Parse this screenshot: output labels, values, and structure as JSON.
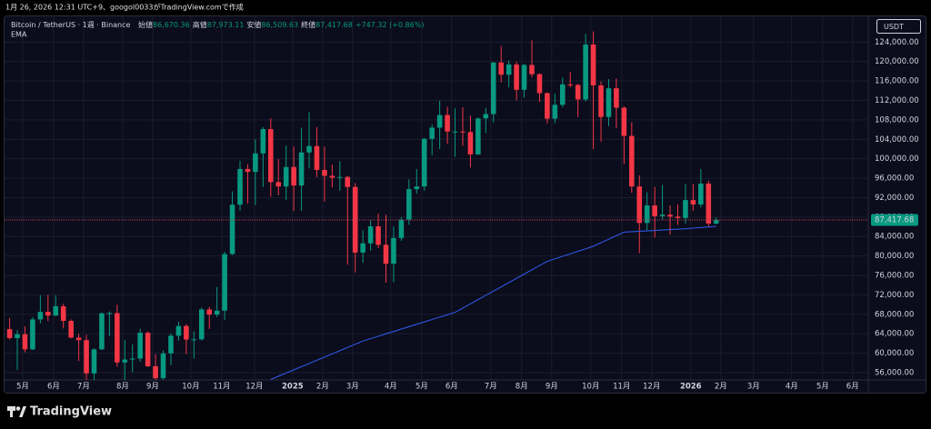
{
  "header": {
    "created": "1月 26, 2026 12:31 UTC+9、googol0033がTradingView.comで作成"
  },
  "chart_data": {
    "type": "candlestick",
    "symbol": "Bitcoin / TetherUS · 1週 · Binance",
    "legend": [
      {
        "label": "始値",
        "value": "86,670.36"
      },
      {
        "label": "高値",
        "value": "87,973.11"
      },
      {
        "label": "安値",
        "value": "86,509.63"
      },
      {
        "label": "終値",
        "value": "87,417.68"
      }
    ],
    "change": "+747.32 (+0.86%)",
    "currency": "USDT",
    "up_color": "#089981",
    "down_color": "#f23645",
    "ohlc": [
      [
        64940,
        67230,
        62800,
        63110
      ],
      [
        63110,
        64730,
        56550,
        63900
      ],
      [
        63900,
        65500,
        60190,
        60800
      ],
      [
        60800,
        67450,
        60630,
        66950
      ],
      [
        66950,
        71950,
        66100,
        68500
      ],
      [
        68500,
        71980,
        66600,
        67750
      ],
      [
        67750,
        71950,
        67600,
        69650
      ],
      [
        69650,
        70200,
        65100,
        66650
      ],
      [
        66650,
        66950,
        63050,
        63200
      ],
      [
        63200,
        64000,
        58400,
        62700
      ],
      [
        62700,
        63800,
        53500,
        55850
      ],
      [
        55850,
        61000,
        54300,
        60800
      ],
      [
        60800,
        68400,
        60600,
        68200
      ],
      [
        68200,
        68600,
        63500,
        68250
      ],
      [
        68250,
        70000,
        57200,
        58100
      ],
      [
        58100,
        62700,
        49000,
        58700
      ],
      [
        58700,
        61800,
        56100,
        58900
      ],
      [
        58900,
        65000,
        58200,
        64200
      ],
      [
        64200,
        64500,
        57200,
        57300
      ],
      [
        57300,
        59800,
        52550,
        54850
      ],
      [
        54850,
        60600,
        54550,
        59950
      ],
      [
        59950,
        64100,
        57500,
        63600
      ],
      [
        63600,
        66500,
        62600,
        65600
      ],
      [
        65600,
        66000,
        59800,
        62800
      ],
      [
        62800,
        64500,
        58900,
        62850
      ],
      [
        62850,
        69400,
        62600,
        69000
      ],
      [
        69000,
        69500,
        65000,
        67950
      ],
      [
        67950,
        73600,
        67450,
        68750
      ],
      [
        68750,
        80900,
        66800,
        80400
      ],
      [
        80400,
        93300,
        80200,
        90550
      ],
      [
        90550,
        99600,
        89300,
        97900
      ],
      [
        97900,
        98900,
        90800,
        97300
      ],
      [
        97300,
        104000,
        90500,
        101100
      ],
      [
        101100,
        106500,
        94200,
        106100
      ],
      [
        106100,
        108300,
        92200,
        95200
      ],
      [
        95200,
        99950,
        92500,
        94300
      ],
      [
        94300,
        102700,
        91500,
        98300
      ],
      [
        98300,
        102500,
        89250,
        94500
      ],
      [
        94500,
        106400,
        89300,
        101300
      ],
      [
        101300,
        109600,
        98000,
        102600
      ],
      [
        102600,
        106500,
        96200,
        97700
      ],
      [
        97700,
        102500,
        91200,
        96500
      ],
      [
        96500,
        98800,
        94100,
        96100
      ],
      [
        96100,
        99500,
        93400,
        96250
      ],
      [
        96250,
        96500,
        78200,
        94200
      ],
      [
        94200,
        95000,
        76600,
        80700
      ],
      [
        80700,
        85300,
        78600,
        82600
      ],
      [
        82600,
        87450,
        81150,
        86100
      ],
      [
        86100,
        88750,
        81600,
        82300
      ],
      [
        82300,
        88500,
        74500,
        78400
      ],
      [
        78400,
        86100,
        74600,
        83700
      ],
      [
        83700,
        88000,
        83100,
        87500
      ],
      [
        87500,
        95750,
        86400,
        93750
      ],
      [
        93750,
        97900,
        92800,
        94300
      ],
      [
        94300,
        104300,
        93400,
        104100
      ],
      [
        104100,
        107100,
        100700,
        106400
      ],
      [
        106400,
        111900,
        102000,
        109000
      ],
      [
        109000,
        110700,
        103100,
        105600
      ],
      [
        105600,
        110400,
        100400,
        105600
      ],
      [
        105600,
        110600,
        102700,
        105500
      ],
      [
        105500,
        108900,
        98200,
        100900
      ],
      [
        100900,
        108500,
        100800,
        108300
      ],
      [
        108300,
        110500,
        105300,
        109200
      ],
      [
        109200,
        119900,
        107500,
        119800
      ],
      [
        119800,
        123200,
        115700,
        117300
      ],
      [
        117300,
        120250,
        114700,
        119400
      ],
      [
        119400,
        120000,
        112000,
        114200
      ],
      [
        114200,
        119500,
        112600,
        119300
      ],
      [
        119300,
        124400,
        116800,
        117400
      ],
      [
        117400,
        117600,
        111700,
        113500
      ],
      [
        113500,
        113700,
        107300,
        108250
      ],
      [
        108250,
        113400,
        107300,
        111100
      ],
      [
        111100,
        116700,
        110600,
        115300
      ],
      [
        115300,
        117900,
        114700,
        115200
      ],
      [
        115200,
        115400,
        108600,
        112200
      ],
      [
        112200,
        125700,
        111800,
        123500
      ],
      [
        123500,
        126200,
        102000,
        115100
      ],
      [
        115100,
        115900,
        103500,
        108600
      ],
      [
        108600,
        116400,
        106700,
        114500
      ],
      [
        114500,
        116500,
        106300,
        110500
      ],
      [
        110500,
        110800,
        98900,
        104700
      ],
      [
        104700,
        107500,
        93000,
        94300
      ],
      [
        94300,
        96600,
        80600,
        86800
      ],
      [
        86800,
        93100,
        85300,
        90400
      ],
      [
        90400,
        94200,
        83800,
        88200
      ],
      [
        88200,
        94600,
        87500,
        88500
      ],
      [
        88500,
        90400,
        84400,
        88100
      ],
      [
        88100,
        90600,
        86400,
        87800
      ],
      [
        87800,
        94800,
        86600,
        91500
      ],
      [
        91500,
        94800,
        89300,
        90600
      ],
      [
        90600,
        97900,
        90000,
        94900
      ],
      [
        94900,
        95500,
        86000,
        86670.36
      ],
      [
        86670.36,
        87973.11,
        86509.63,
        87417.68
      ]
    ],
    "series": [
      {
        "name": "EMA",
        "color": "#2e55e0",
        "values": [
          null,
          null,
          null,
          null,
          null,
          null,
          null,
          null,
          null,
          null,
          null,
          null,
          null,
          null,
          null,
          null,
          null,
          null,
          null,
          null,
          null,
          null,
          null,
          null,
          null,
          null,
          null,
          null,
          null,
          null,
          null,
          null,
          null,
          null,
          54600,
          55260,
          55920,
          56570,
          57230,
          57890,
          58550,
          59200,
          59860,
          60520,
          61180,
          61840,
          62500,
          62990,
          63480,
          63980,
          64470,
          64960,
          65450,
          65940,
          66430,
          66930,
          67420,
          67910,
          68400,
          69280,
          70150,
          71030,
          71900,
          72780,
          73650,
          74530,
          75400,
          76280,
          77150,
          78030,
          78900,
          79420,
          79930,
          80450,
          80970,
          81480,
          82000,
          82730,
          83450,
          84180,
          84900,
          84990,
          85080,
          85160,
          85250,
          85340,
          85430,
          85510,
          85600,
          85730,
          85850,
          85980,
          86100
        ]
      }
    ],
    "last_price_label": "87,417.68",
    "xlim": [
      -0.66,
      111.8
    ],
    "xticks": [
      {
        "value": 1.7,
        "label": "5月"
      },
      {
        "value": 5.73,
        "label": "6月"
      },
      {
        "value": 9.63,
        "label": "7月"
      },
      {
        "value": 14.72,
        "label": "8月"
      },
      {
        "value": 18.63,
        "label": "9月"
      },
      {
        "value": 23.6,
        "label": "10月"
      },
      {
        "value": 27.62,
        "label": "11月"
      },
      {
        "value": 31.88,
        "label": "12月"
      },
      {
        "value": 36.85,
        "label": "2025"
      },
      {
        "value": 40.76,
        "label": "2月"
      },
      {
        "value": 44.66,
        "label": "3月"
      },
      {
        "value": 49.63,
        "label": "4月"
      },
      {
        "value": 53.65,
        "label": "5月"
      },
      {
        "value": 57.56,
        "label": "6月"
      },
      {
        "value": 62.65,
        "label": "7月"
      },
      {
        "value": 66.67,
        "label": "8月"
      },
      {
        "value": 70.58,
        "label": "9月"
      },
      {
        "value": 75.67,
        "label": "10月"
      },
      {
        "value": 79.69,
        "label": "11月"
      },
      {
        "value": 83.6,
        "label": "12月"
      },
      {
        "value": 88.69,
        "label": "2026"
      },
      {
        "value": 92.6,
        "label": "2月"
      },
      {
        "value": 96.86,
        "label": "3月"
      },
      {
        "value": 101.83,
        "label": "4月"
      },
      {
        "value": 105.86,
        "label": "5月"
      },
      {
        "value": 109.76,
        "label": "6月"
      }
    ],
    "ylim": [
      54500,
      129300
    ],
    "yticks": [
      {
        "value": 56000,
        "label": "56,000.00"
      },
      {
        "value": 60000,
        "label": "60,000.00"
      },
      {
        "value": 64000,
        "label": "64,000.00"
      },
      {
        "value": 68000,
        "label": "68,000.00"
      },
      {
        "value": 72000,
        "label": "72,000.00"
      },
      {
        "value": 76000,
        "label": "76,000.00"
      },
      {
        "value": 80000,
        "label": "80,000.00"
      },
      {
        "value": 84000,
        "label": "84,000.00"
      },
      {
        "value": 88000,
        "label": "88,000.00"
      },
      {
        "value": 92000,
        "label": "92,000.00"
      },
      {
        "value": 96000,
        "label": "96,000.00"
      },
      {
        "value": 100000,
        "label": "100,000.00"
      },
      {
        "value": 104000,
        "label": "104,000.00"
      },
      {
        "value": 108000,
        "label": "108,000.00"
      },
      {
        "value": 112000,
        "label": "112,000.00"
      },
      {
        "value": 116000,
        "label": "116,000.00"
      },
      {
        "value": 120000,
        "label": "120,000.00"
      },
      {
        "value": 124000,
        "label": "124,000.00"
      }
    ],
    "grid": true
  },
  "footer": {
    "brand": "TradingView"
  }
}
